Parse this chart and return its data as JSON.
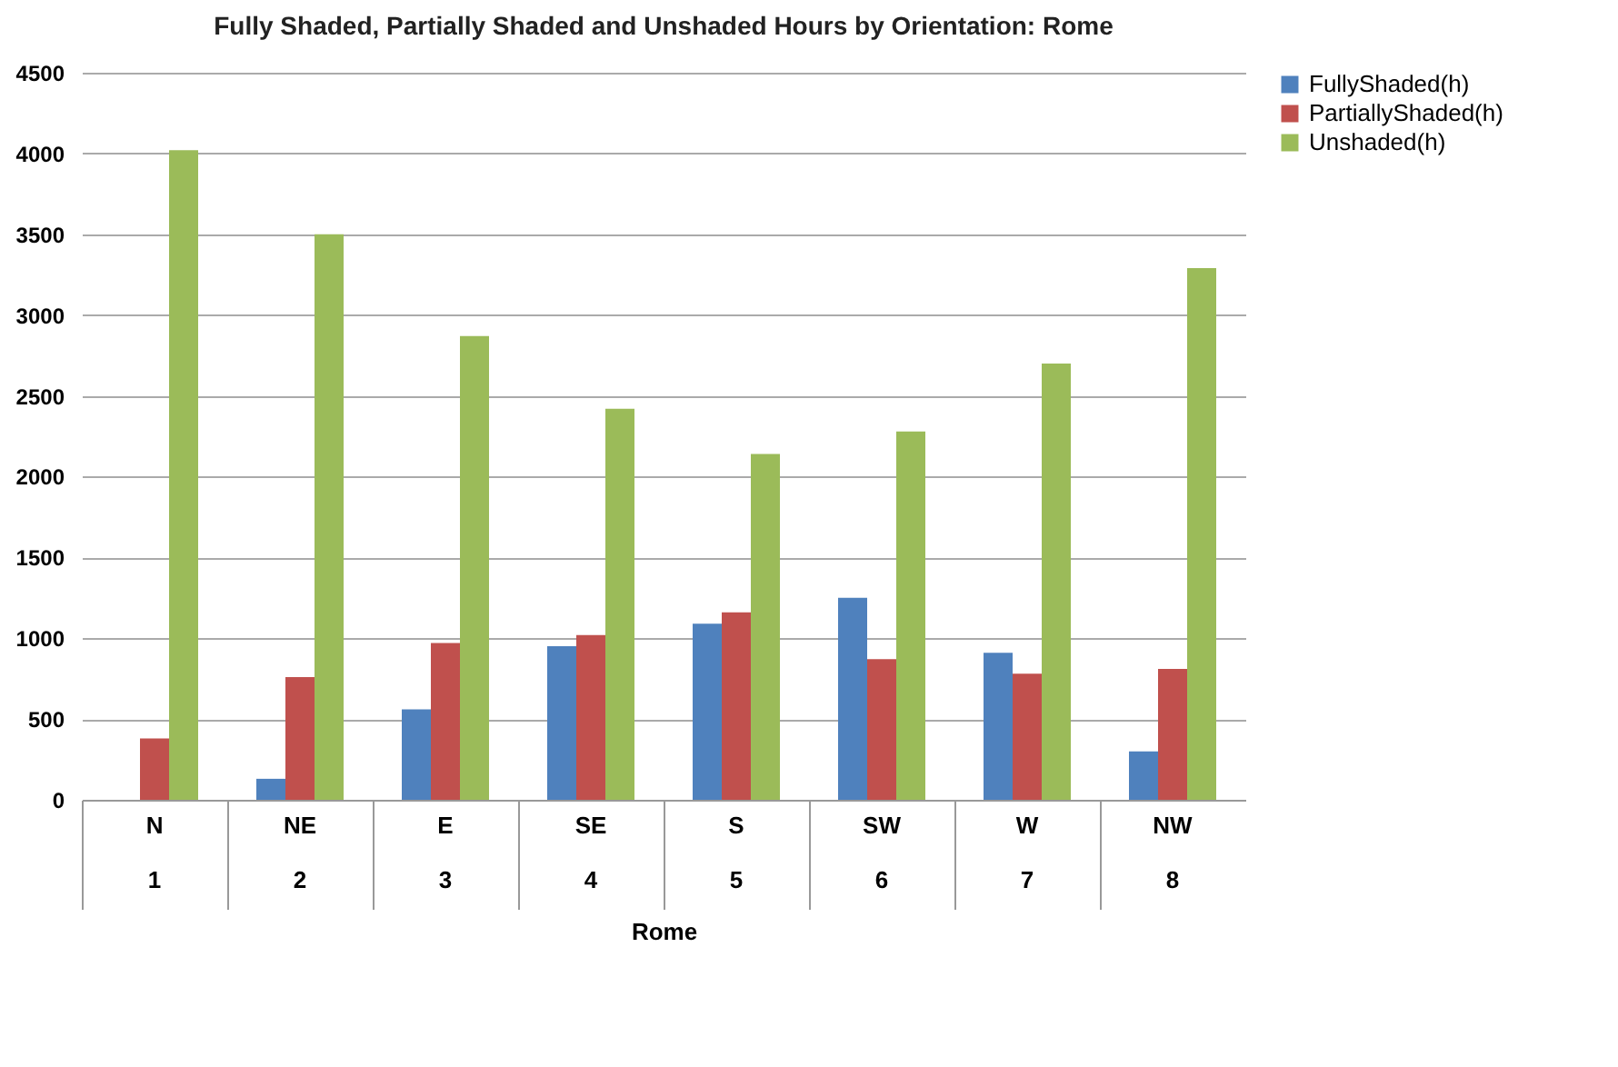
{
  "chart_data": {
    "type": "bar",
    "title": "Fully Shaded, Partially Shaded and Unshaded Hours by Orientation: Rome",
    "xlabel": "Rome",
    "categories": [
      "N\n1",
      "NE\n2",
      "E\n3",
      "SE\n4",
      "S\n5",
      "SW\n6",
      "W\n7",
      "NW\n8"
    ],
    "series": [
      {
        "name": "FullyShaded(h)",
        "color": "#4f81bd",
        "values": [
          0,
          130,
          560,
          950,
          1090,
          1250,
          910,
          300
        ]
      },
      {
        "name": "PartiallyShaded(h)",
        "color": "#c0504d",
        "values": [
          380,
          760,
          970,
          1020,
          1160,
          870,
          780,
          810
        ]
      },
      {
        "name": "Unshaded(h)",
        "color": "#9bbb59",
        "values": [
          4020,
          3500,
          2870,
          2420,
          2140,
          2280,
          2700,
          3290
        ]
      }
    ],
    "ylim": [
      0,
      4500
    ],
    "yticks": [
      0,
      500,
      1000,
      1500,
      2000,
      2500,
      3000,
      3500,
      4000,
      4500
    ],
    "grid": "y",
    "legend": "right"
  }
}
